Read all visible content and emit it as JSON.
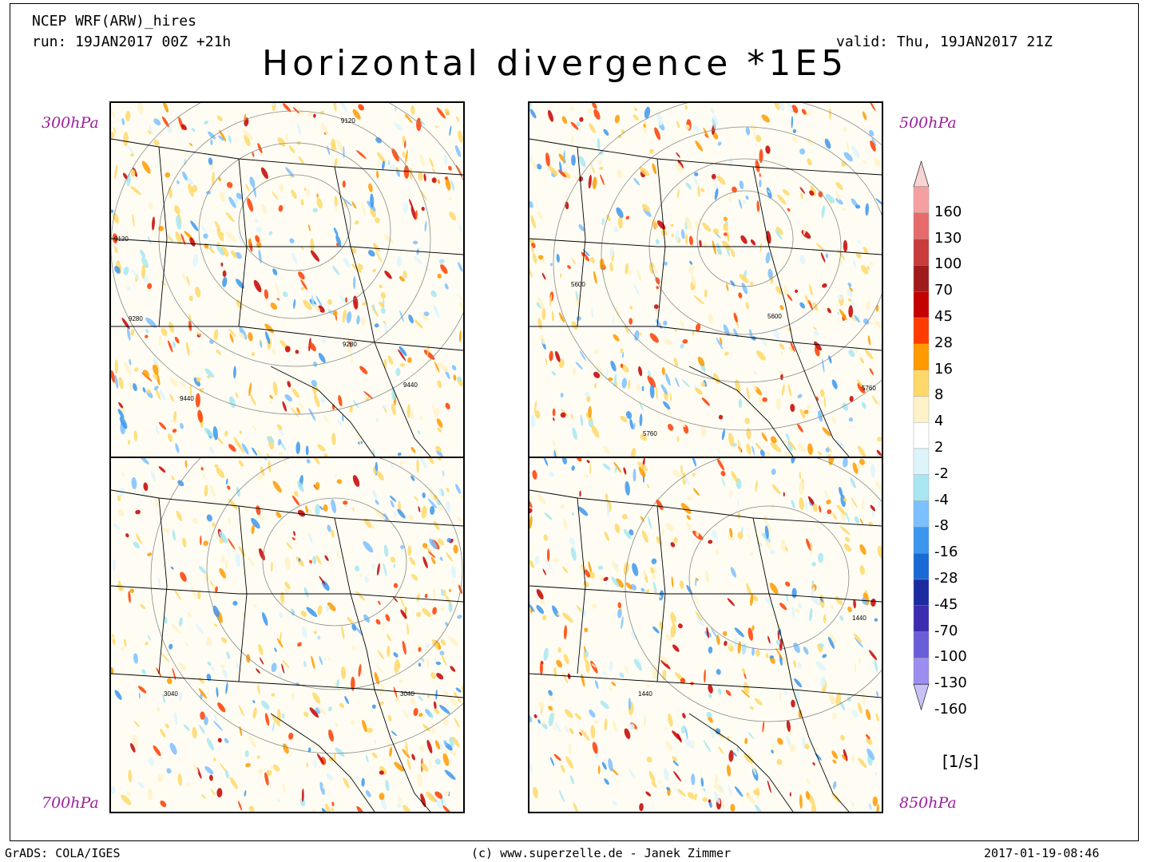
{
  "header": {
    "model": "NCEP WRF(ARW)_hires",
    "run": "run: 19JAN2017 00Z +21h",
    "valid": "valid: Thu, 19JAN2017 21Z",
    "title": "Horizontal divergence *1E5"
  },
  "panels": [
    {
      "id": "p300",
      "level_label": "300hPa",
      "contours": [
        "9120",
        "9120",
        "9280",
        "9280",
        "9440",
        "9440"
      ]
    },
    {
      "id": "p500",
      "level_label": "500hPa",
      "contours": [
        "5600",
        "5600",
        "5760",
        "5760"
      ]
    },
    {
      "id": "p700",
      "level_label": "700hPa",
      "contours": [
        "3040",
        "3040"
      ]
    },
    {
      "id": "p850",
      "level_label": "850hPa",
      "contours": [
        "1440",
        "1440"
      ]
    }
  ],
  "colorbar": {
    "levels": [
      "160",
      "130",
      "100",
      "70",
      "45",
      "28",
      "16",
      "8",
      "4",
      "2",
      "-2",
      "-4",
      "-8",
      "-16",
      "-28",
      "-45",
      "-70",
      "-100",
      "-130",
      "-160"
    ],
    "colors": [
      "#f8d4d4",
      "#f5a0a0",
      "#e76b6b",
      "#c83c3c",
      "#a01c1c",
      "#c40000",
      "#ff3c00",
      "#ff9a00",
      "#ffd86a",
      "#fff2c8",
      "#ffffff",
      "#def4fb",
      "#a8e6f2",
      "#7cc0ff",
      "#3c96ee",
      "#1a6ad6",
      "#1a2ca0",
      "#3c2cb0",
      "#6a5ed8",
      "#9c8ef0",
      "#c8c0f8"
    ],
    "units": "[1/s]"
  },
  "footer": {
    "left": "GrADS: COLA/IGES",
    "center": "(c) www.superzelle.de - Janek Zimmer",
    "right": "2017-01-19-08:46"
  }
}
